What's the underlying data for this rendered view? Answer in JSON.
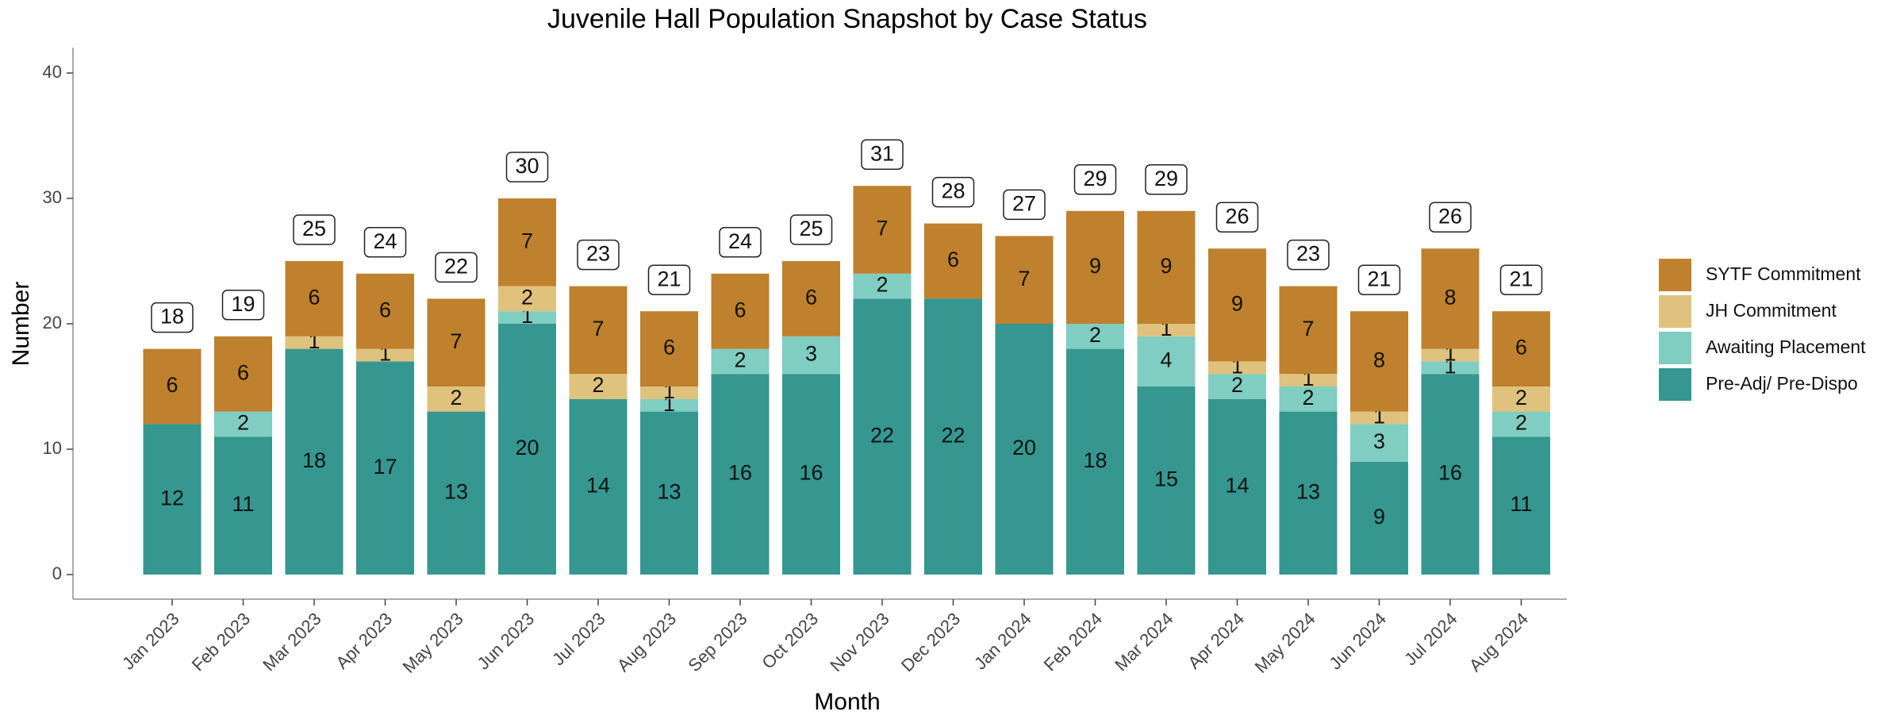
{
  "chart_data": {
    "type": "stacked_bar",
    "title": "Juvenile Hall Population Snapshot by Case Status",
    "x_label": "Month",
    "y_label": "Number",
    "categories": [
      "Jan 2023",
      "Feb 2023",
      "Mar 2023",
      "Apr 2023",
      "May 2023",
      "Jun 2023",
      "Jul 2023",
      "Aug 2023",
      "Sep 2023",
      "Oct 2023",
      "Nov 2023",
      "Dec 2023",
      "Jan 2024",
      "Feb 2024",
      "Mar 2024",
      "Apr 2024",
      "May 2024",
      "Jun 2024",
      "Jul 2024",
      "Aug 2024"
    ],
    "series": [
      {
        "name": "Pre-Adj/ Pre-Dispo",
        "color": "#35978f",
        "values": [
          12,
          11,
          18,
          17,
          13,
          20,
          14,
          13,
          16,
          16,
          22,
          22,
          20,
          18,
          15,
          14,
          13,
          9,
          16,
          11
        ]
      },
      {
        "name": "Awaiting Placement",
        "color": "#80cdc1",
        "values": [
          0,
          2,
          0,
          0,
          0,
          1,
          0,
          1,
          2,
          3,
          2,
          0,
          0,
          2,
          4,
          2,
          2,
          3,
          1,
          2
        ]
      },
      {
        "name": "JH Commitment",
        "color": "#dfc27d",
        "values": [
          0,
          0,
          1,
          1,
          2,
          2,
          2,
          1,
          0,
          0,
          0,
          0,
          0,
          0,
          1,
          1,
          1,
          1,
          1,
          2
        ]
      },
      {
        "name": "SYTF Commitment",
        "color": "#bf812d",
        "values": [
          6,
          6,
          6,
          6,
          7,
          7,
          7,
          6,
          6,
          6,
          7,
          6,
          7,
          9,
          9,
          9,
          7,
          8,
          8,
          6
        ]
      }
    ],
    "totals": [
      18,
      19,
      25,
      24,
      22,
      30,
      23,
      21,
      24,
      25,
      31,
      28,
      27,
      29,
      29,
      26,
      23,
      21,
      26,
      21
    ],
    "ylim": [
      0,
      40
    ],
    "yticks": [
      0,
      10,
      20,
      30,
      40
    ],
    "grid": false,
    "legend": "right"
  }
}
